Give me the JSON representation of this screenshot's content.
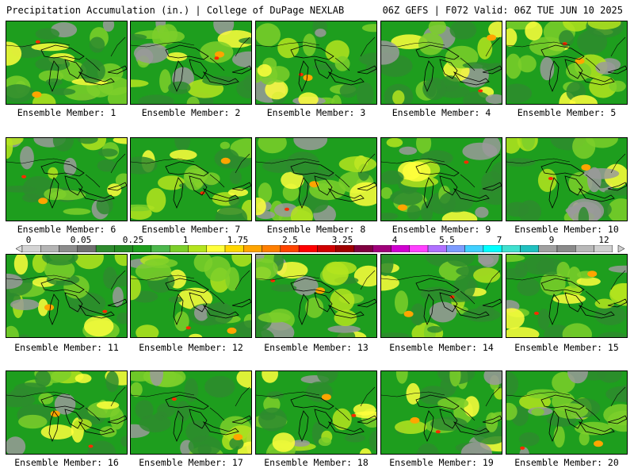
{
  "header": {
    "title_left": "Precipitation Accumulation (in.) | College of DuPage NEXLAB",
    "title_right": "06Z GEFS | F072 Valid: 06Z TUE JUN 10 2025"
  },
  "members": [
    {
      "label": "Ensemble Member: 1"
    },
    {
      "label": "Ensemble Member: 2"
    },
    {
      "label": "Ensemble Member: 3"
    },
    {
      "label": "Ensemble Member: 4"
    },
    {
      "label": "Ensemble Member: 5"
    },
    {
      "label": "Ensemble Member: 6"
    },
    {
      "label": "Ensemble Member: 7"
    },
    {
      "label": "Ensemble Member: 8"
    },
    {
      "label": "Ensemble Member: 9"
    },
    {
      "label": "Ensemble Member: 10"
    },
    {
      "label": "Ensemble Member: 11"
    },
    {
      "label": "Ensemble Member: 12"
    },
    {
      "label": "Ensemble Member: 13"
    },
    {
      "label": "Ensemble Member: 14"
    },
    {
      "label": "Ensemble Member: 15"
    },
    {
      "label": "Ensemble Member: 16"
    },
    {
      "label": "Ensemble Member: 17"
    },
    {
      "label": "Ensemble Member: 18"
    },
    {
      "label": "Ensemble Member: 19"
    },
    {
      "label": "Ensemble Member: 20"
    }
  ],
  "legend": {
    "tick_labels": [
      "0",
      "0.05",
      "0.25",
      "1",
      "1.75",
      "2.5",
      "3.25",
      "4",
      "5.5",
      "7",
      "9",
      "12"
    ],
    "colors": [
      "#d4d4d4",
      "#b4b4b4",
      "#8c8c8c",
      "#707070",
      "#2e8b2e",
      "#248a24",
      "#1e9e1e",
      "#4cb84c",
      "#7ccf2a",
      "#b4e41e",
      "#ffff3c",
      "#ffd700",
      "#ffa500",
      "#ff7f00",
      "#ff4500",
      "#ff0000",
      "#d00000",
      "#a00000",
      "#800040",
      "#a0007a",
      "#d000d0",
      "#ff40ff",
      "#b070ff",
      "#7d9cff",
      "#40d0ff",
      "#00ffff",
      "#40e0d0",
      "#20c0c0",
      "#a0a0a0",
      "#8a8a8a",
      "#b8b8b8",
      "#d0d0d0"
    ]
  },
  "map_colors": {
    "dark_green": "#2e8b2e",
    "green": "#1e9e1e",
    "light_green": "#7ccf2a",
    "yellow_green": "#b4e41e",
    "yellow": "#ffff3c",
    "orange": "#ffa500",
    "red": "#ff2a00",
    "gray": "#9a9a9a"
  }
}
